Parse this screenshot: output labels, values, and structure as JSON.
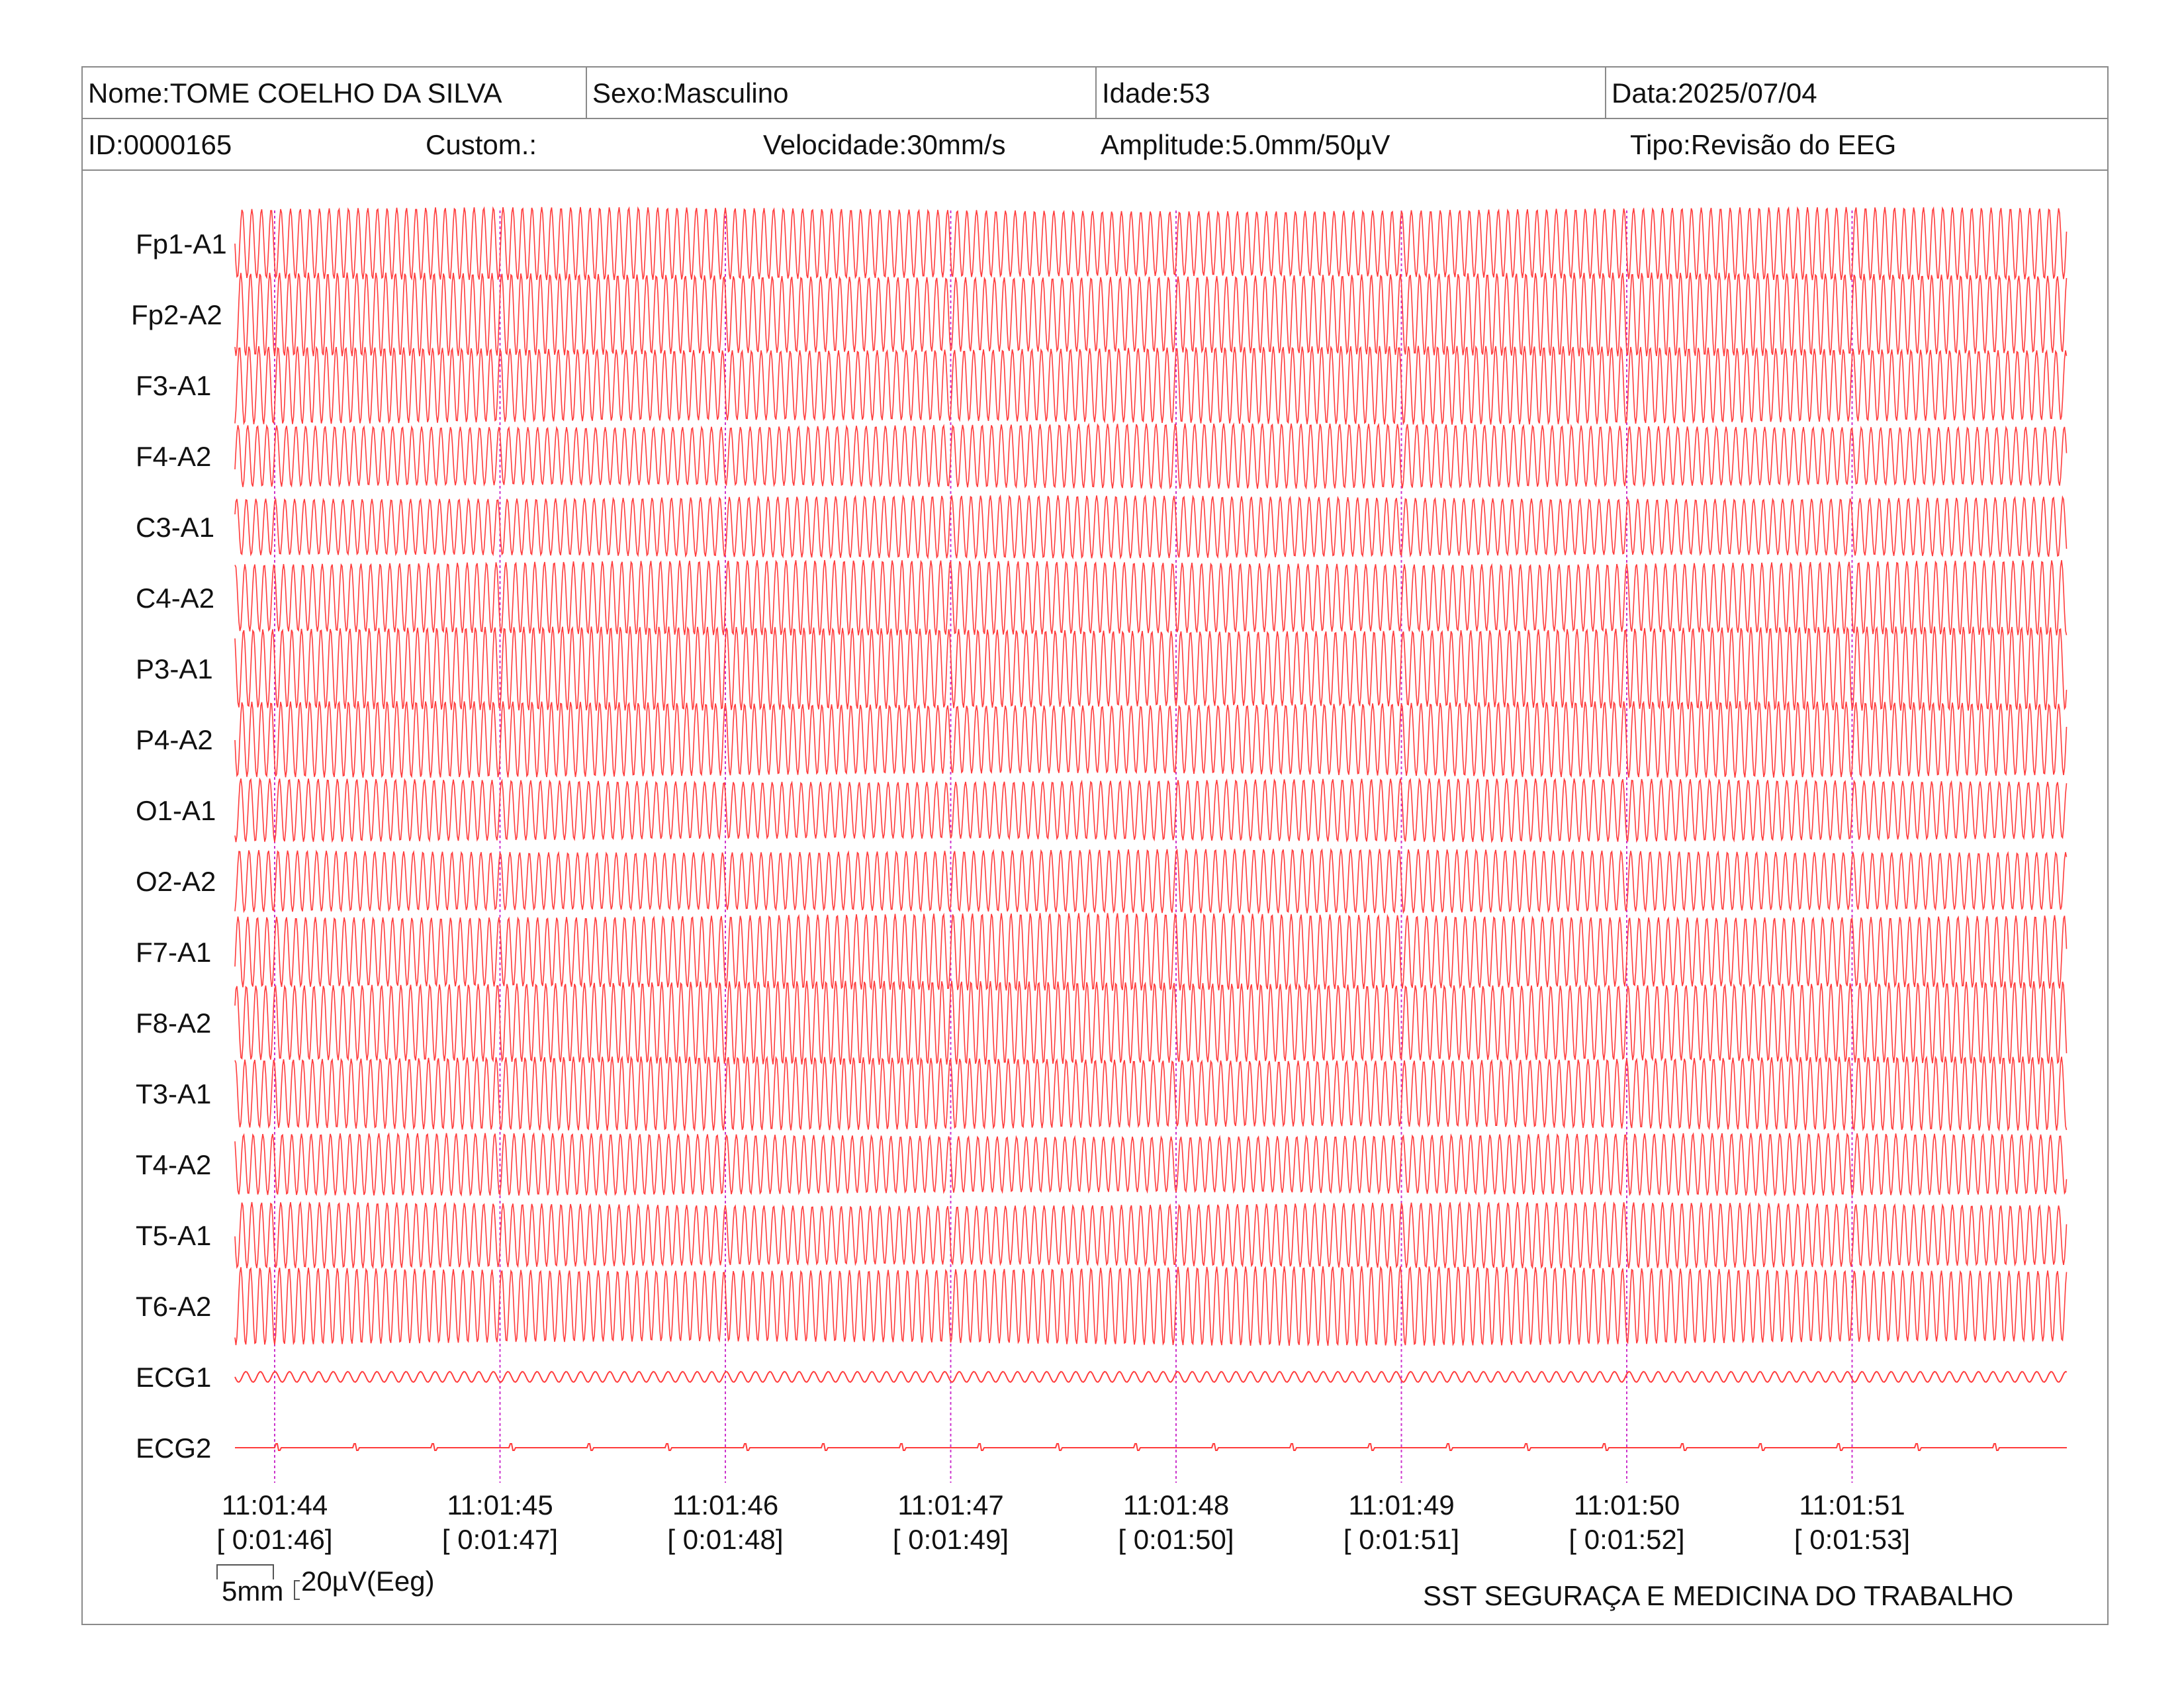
{
  "header": {
    "name": "Nome:TOME COELHO DA SILVA",
    "sex": "Sexo:Masculino",
    "age": "Idade:53",
    "date": "Data:2025/07/04",
    "id": "ID:0000165",
    "custom": "Custom.:",
    "speed": "Velocidade:30mm/s",
    "amplitude": "Amplitude:5.0mm/50µV",
    "type": "Tipo:Revisão do EEG"
  },
  "channels": [
    "Fp1-A1",
    "Fp2-A2",
    "F3-A1",
    "F4-A2",
    "C3-A1",
    "C4-A2",
    "P3-A1",
    "P4-A2",
    "O1-A1",
    "O2-A2",
    "F7-A1",
    "F8-A2",
    "T3-A1",
    "T4-A2",
    "T5-A1",
    "T6-A2",
    "ECG1",
    "ECG2"
  ],
  "time_marks": [
    {
      "clock": "11:01:44",
      "elapsed": "[ 0:01:46]"
    },
    {
      "clock": "11:01:45",
      "elapsed": "[ 0:01:47]"
    },
    {
      "clock": "11:01:46",
      "elapsed": "[ 0:01:48]"
    },
    {
      "clock": "11:01:47",
      "elapsed": "[ 0:01:49]"
    },
    {
      "clock": "11:01:48",
      "elapsed": "[ 0:01:50]"
    },
    {
      "clock": "11:01:49",
      "elapsed": "[ 0:01:51]"
    },
    {
      "clock": "11:01:50",
      "elapsed": "[ 0:01:52]"
    },
    {
      "clock": "11:01:51",
      "elapsed": "[ 0:01:53]"
    }
  ],
  "scale": {
    "time": "5mm",
    "amp": "20µV(Eeg)"
  },
  "footer": "SST SEGURAÇA E MEDICINA DO TRABALHO",
  "colors": {
    "trace": "#ff3b3b",
    "marker": "#cc33cc",
    "border": "#8a8a8a"
  }
}
